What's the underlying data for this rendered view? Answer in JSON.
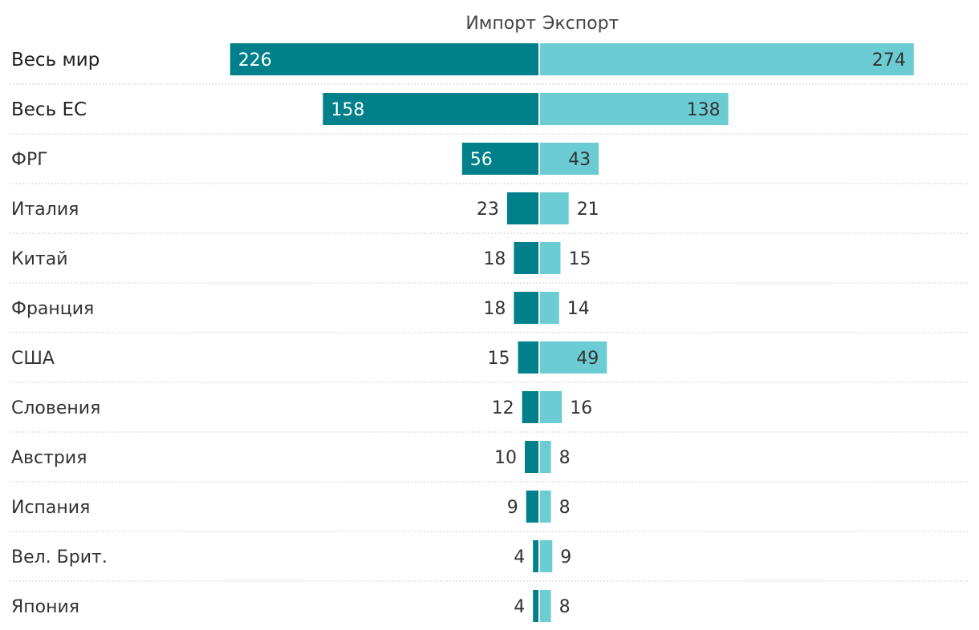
{
  "chart_data": {
    "type": "bar",
    "orientation": "horizontal-diverging",
    "legend": {
      "placement": "top-center",
      "entries": [
        "Импорт",
        "Экспорт"
      ]
    },
    "categories": [
      "Весь мир",
      "Весь ЕС",
      "ФРГ",
      "Италия",
      "Китай",
      "Франция",
      "США",
      "Словения",
      "Австрия",
      "Испания",
      "Вел. Брит.",
      "Япония"
    ],
    "bold_categories": [
      "Весь мир",
      "Весь ЕС"
    ],
    "series": [
      {
        "name": "Импорт",
        "color": "#00808a",
        "values": [
          226,
          158,
          56,
          23,
          18,
          18,
          15,
          12,
          10,
          9,
          4,
          4
        ]
      },
      {
        "name": "Экспорт",
        "color": "#6bccd4",
        "values": [
          274,
          138,
          43,
          21,
          15,
          14,
          49,
          16,
          8,
          8,
          9,
          8
        ]
      }
    ],
    "grid": false
  }
}
